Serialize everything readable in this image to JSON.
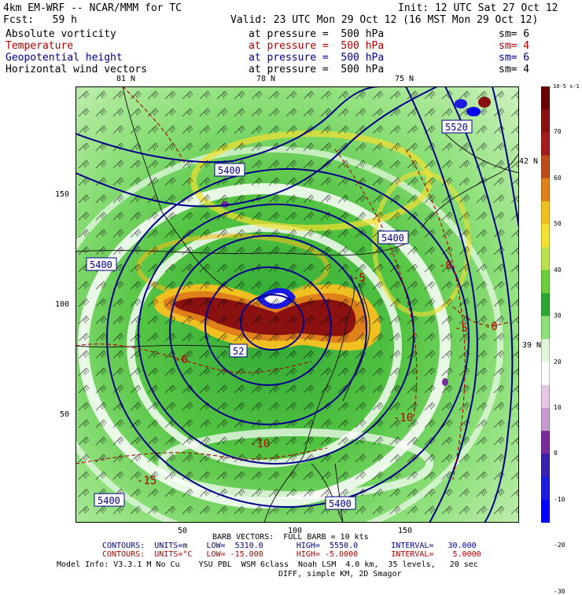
{
  "header": {
    "model": "4km EM-WRF -- NCAR/MMM for TC",
    "init": "Init: 12 UTC Sat 27 Oct 12",
    "fcst": "Fcst:   59 h",
    "valid": "Valid: 23 UTC Mon 29 Oct 12 (16 MST Mon 29 Oct 12)"
  },
  "fields": [
    {
      "name": "Absolute vorticity",
      "level": "at pressure =  500 hPa",
      "sm": "sm= 6",
      "color": "#000000"
    },
    {
      "name": "Temperature",
      "level": "at pressure =  500 hPa",
      "sm": "sm= 4",
      "color": "#b00000"
    },
    {
      "name": "Geopotential height",
      "level": "at pressure =  500 hPa",
      "sm": "sm= 6",
      "color": "#00008b"
    },
    {
      "name": "Horizontal wind vectors",
      "level": "at pressure =  500 hPa",
      "sm": "sm= 4",
      "color": "#000000"
    }
  ],
  "axes": {
    "top_lon": [
      "81 N",
      "78 N",
      "75 N"
    ],
    "right_lat": [
      "42 N",
      "39 N"
    ],
    "left_grid": [
      "150",
      "100",
      "50"
    ],
    "bottom_grid": [
      "50",
      "100",
      "150"
    ]
  },
  "map_labels": {
    "height_contours": [
      "5520",
      "5400",
      "5400",
      "5400",
      "5400",
      "5400",
      "52"
    ],
    "temp_contours": [
      "-15",
      "-10",
      "-10",
      "-0",
      "-0",
      "-0",
      "-5",
      "-5"
    ]
  },
  "colorbar": {
    "units": "10-5 s-1",
    "labels": [
      "70",
      "60",
      "50",
      "40",
      "30",
      "20",
      "10",
      "0",
      "-10",
      "-20",
      "-30"
    ],
    "colors": [
      "#6b0000",
      "#8b1010",
      "#a51a1a",
      "#c04a1a",
      "#e0801a",
      "#f0c020",
      "#f4e030",
      "#b8e050",
      "#6ccd3c",
      "#2ea834",
      "#8ee07a",
      "#dff6d8",
      "#ffffff",
      "#e6c8e6",
      "#c89ad2",
      "#7a2a9c",
      "#3a20b0",
      "#1a1ae0",
      "#0000ff"
    ]
  },
  "footer": {
    "barb": "BARB VECTORS:  FULL BARB = 10 kts",
    "contours1": "CONTOURS:  UNITS=m    LOW=  5310.0       HIGH=  5550.0       INTERVAL=   30.000",
    "contours2": "CONTOURS:  UNITS=°C   LOW= -15.000       HIGH= -5.0000       INTERVAL=    5.0000",
    "model_info": "Model Info: V3.3.1 M No Cu    YSU PBL  WSM 6class  Noah LSM  4.0 km,  35 levels,   20 sec",
    "diff": "DIFF, simple KM, 2D Smagor"
  }
}
